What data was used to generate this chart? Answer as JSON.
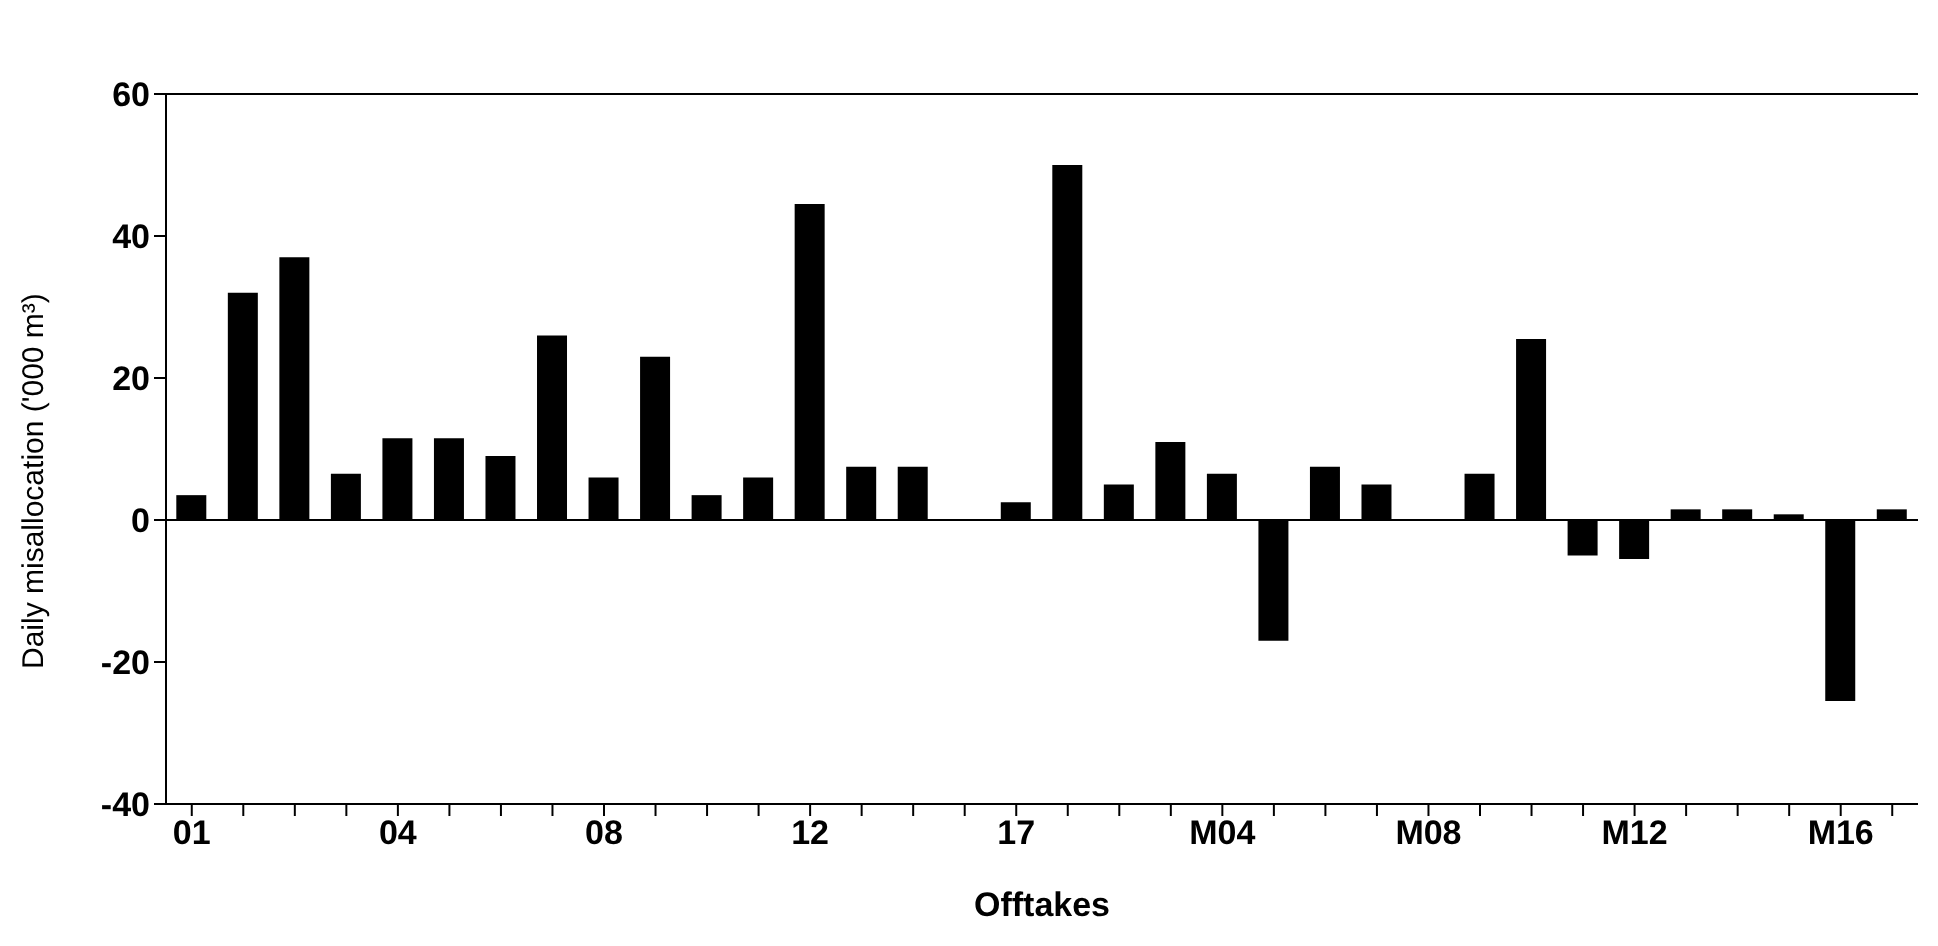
{
  "chart_data": {
    "type": "bar",
    "xlabel": "Offtakes",
    "ylabel": "Daily misallocation ('000 m³)",
    "categories": [
      "01",
      null,
      null,
      null,
      "04",
      null,
      null,
      null,
      "08",
      null,
      null,
      null,
      "12",
      null,
      null,
      null,
      "17",
      null,
      null,
      null,
      "M04",
      null,
      null,
      null,
      "M08",
      null,
      null,
      null,
      "M12",
      null,
      null,
      null,
      "M16",
      null
    ],
    "values": [
      3.5,
      32,
      37,
      6.5,
      11.5,
      11.5,
      9,
      26,
      6,
      23,
      3.5,
      6,
      44.5,
      7.5,
      7.5,
      null,
      2.5,
      50,
      5,
      11,
      6.5,
      -17,
      7.5,
      5,
      null,
      6.5,
      25.5,
      -5,
      -5.5,
      1.5,
      1.5,
      0.8,
      -25.5,
      1.5
    ],
    "color": "#000000",
    "ylim": [
      -40,
      60
    ],
    "yticks": [
      -40,
      -20,
      0,
      20,
      40,
      60
    ],
    "ref_lines": [
      {
        "axis": "y",
        "value": 0
      }
    ],
    "grid": false,
    "legend": false
  }
}
